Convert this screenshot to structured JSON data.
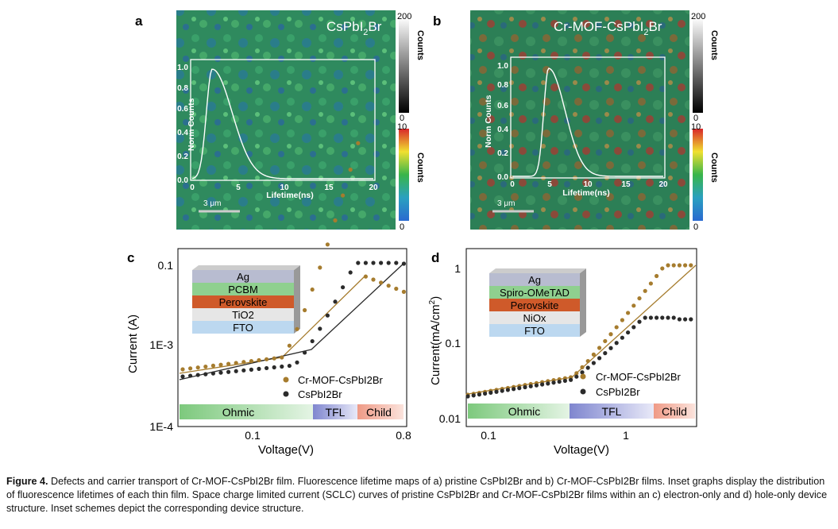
{
  "panels": {
    "a": {
      "letter": "a",
      "title_main": "CsPbI",
      "title_sub": "2",
      "title_tail": "Br",
      "scalebar": "3 μm",
      "inset_ylabel": "Norm Counts",
      "inset_xlabel": "Lifetime(ns)",
      "inset_yticks": [
        "0.0",
        "0.2",
        "0.4",
        "0.6",
        "0.8",
        "1.0"
      ],
      "inset_xticks": [
        "0",
        "5",
        "10",
        "15",
        "20"
      ],
      "cbar_top": {
        "max": "200",
        "min": "0",
        "label": "Counts"
      },
      "cbar_bottom": {
        "max": "10",
        "min": "0",
        "label": "Counts"
      }
    },
    "b": {
      "letter": "b",
      "title_main": "Cr-MOF-CsPbI",
      "title_sub": "2",
      "title_tail": "Br",
      "scalebar": "3 μm",
      "inset_ylabel": "Norm Counts",
      "inset_xlabel": "Lifetime(ns)",
      "inset_yticks": [
        "0.0",
        "0.2",
        "0.4",
        "0.6",
        "0.8",
        "1.0"
      ],
      "inset_xticks": [
        "0",
        "5",
        "10",
        "15",
        "20"
      ],
      "cbar_top": {
        "max": "200",
        "min": "0",
        "label": "Counts"
      },
      "cbar_bottom": {
        "max": "10",
        "min": "0",
        "label": "Counts"
      }
    },
    "c": {
      "letter": "c",
      "ylabel": "Current (A)",
      "xlabel": "Voltage(V)",
      "yticks": [
        "0.1",
        "1E-3",
        "1E-4"
      ],
      "xticks": [
        "0.1",
        "0.8"
      ],
      "legend": [
        "Cr-MOF-CsPbI2Br",
        "CsPbI2Br"
      ],
      "stack": [
        "Ag",
        "PCBM",
        "Perovskite",
        "TiO2",
        "FTO"
      ],
      "regions": [
        "Ohmic",
        "TFL",
        "Child"
      ]
    },
    "d": {
      "letter": "d",
      "ylabel": "Current(mA/cm2)",
      "xlabel": "Voltage(V)",
      "yticks": [
        "1",
        "0.1",
        "0.01"
      ],
      "xticks": [
        "0.1",
        "1"
      ],
      "legend": [
        "Cr-MOF-CsPbI2Br",
        "CsPbI2Br"
      ],
      "stack": [
        "Ag",
        "Spiro-OMeTAD",
        "Perovskite",
        "NiOx",
        "FTO"
      ],
      "regions": [
        "Ohmic",
        "TFL",
        "Child"
      ]
    }
  },
  "caption": {
    "label": "Figure 4.",
    "text": " Defects and carrier transport of Cr-MOF-CsPbI2Br film. Fluorescence lifetime maps of a) pristine CsPbI2Br and b) Cr-MOF-CsPbI2Br films. Inset graphs display the distribution of fluorescence lifetimes of each thin film. Space charge limited current (SCLC) curves of pristine CsPbI2Br and Cr-MOF-CsPbI2Br films within an c) electron-only and d) hole-only device structure. Inset schemes depict the corresponding device structure."
  },
  "colors": {
    "gold": "#a67c2e",
    "dark": "#2b2b2b",
    "map_green": "#2e8a5a",
    "ohmic": "#8fd08f",
    "tfl": "#8f95d6",
    "child": "#f0a896"
  }
}
